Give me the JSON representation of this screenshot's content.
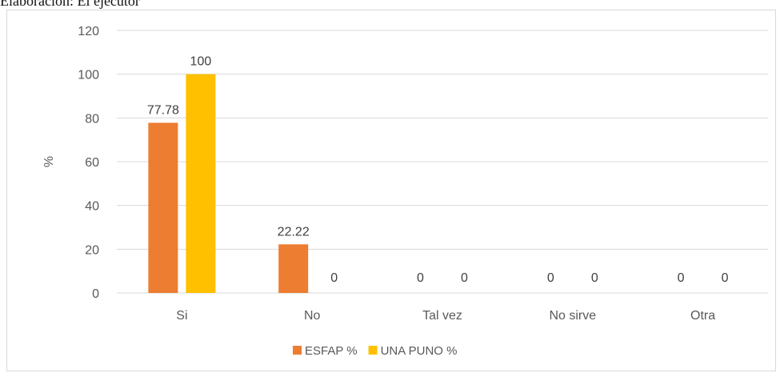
{
  "caption": "Elaboración: El ejecutor",
  "chart_data": {
    "type": "bar",
    "categories": [
      "Si",
      "No",
      "Tal vez",
      "No sirve",
      "Otra"
    ],
    "series": [
      {
        "name": "ESFAP %",
        "values": [
          77.78,
          22.22,
          0,
          0,
          0
        ],
        "labels": [
          "77.78",
          "22.22",
          "0",
          "0",
          "0"
        ],
        "color": "#ed7d31"
      },
      {
        "name": "UNA PUNO %",
        "values": [
          100,
          0,
          0,
          0,
          0
        ],
        "labels": [
          "100",
          "0",
          "0",
          "0",
          "0"
        ],
        "color": "#ffc000"
      }
    ],
    "ylabel": "%",
    "xlabel": "",
    "ylim": [
      0,
      120
    ],
    "yticks": [
      0,
      20,
      40,
      60,
      80,
      100,
      120
    ],
    "grid": true,
    "legend_position": "bottom"
  }
}
